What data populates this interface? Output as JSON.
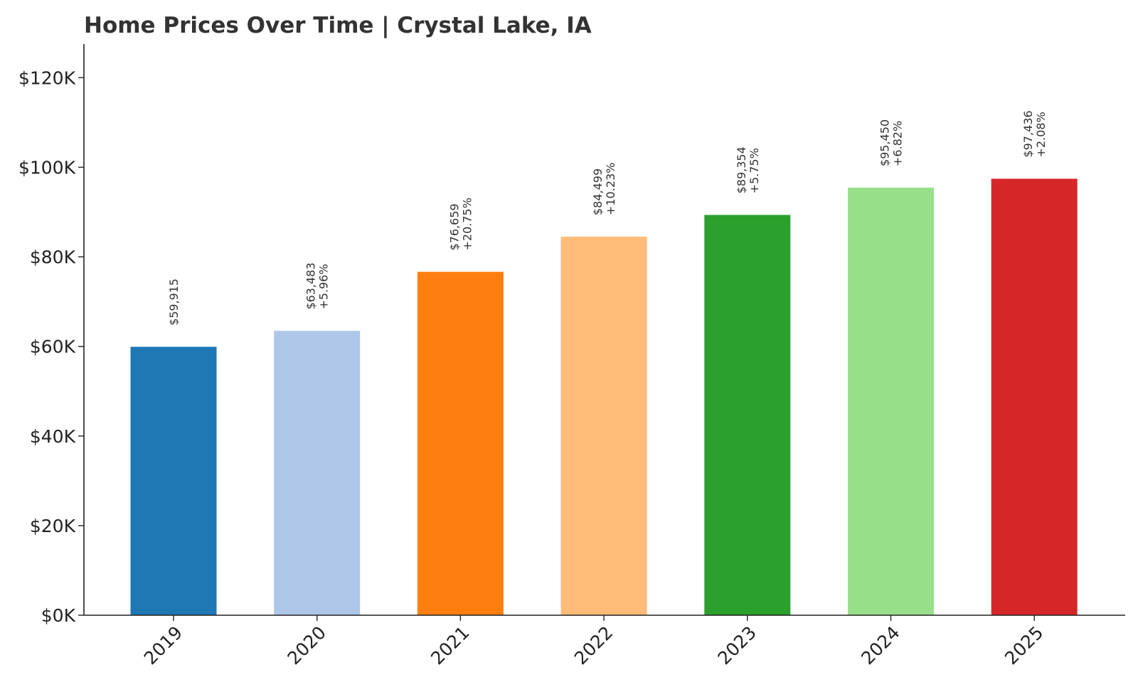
{
  "chart_data": {
    "type": "bar",
    "title": "Home Prices Over Time | Crystal Lake, IA",
    "xlabel": "",
    "ylabel": "",
    "categories": [
      "2019",
      "2020",
      "2021",
      "2022",
      "2023",
      "2024",
      "2025"
    ],
    "values": [
      59915,
      63483,
      76659,
      84499,
      89354,
      95450,
      97436
    ],
    "value_labels": [
      "$59,915",
      "$63,483",
      "$76,659",
      "$84,499",
      "$89,354",
      "$95,450",
      "$97,436"
    ],
    "change_labels": [
      "",
      "+5.96%",
      "+20.75%",
      "+10.23%",
      "+5.75%",
      "+6.82%",
      "+2.08%"
    ],
    "colors": [
      "#1f77b4",
      "#aec7e8",
      "#ff7f0e",
      "#ffbb78",
      "#2ca02c",
      "#98df8a",
      "#d62728"
    ],
    "ylim": [
      0,
      127500
    ],
    "yticks": [
      0,
      20000,
      40000,
      60000,
      80000,
      100000,
      120000
    ],
    "ytick_labels": [
      "$0K",
      "$20K",
      "$40K",
      "$60K",
      "$80K",
      "$100K",
      "$120K"
    ],
    "grid": false,
    "legend": "none"
  }
}
